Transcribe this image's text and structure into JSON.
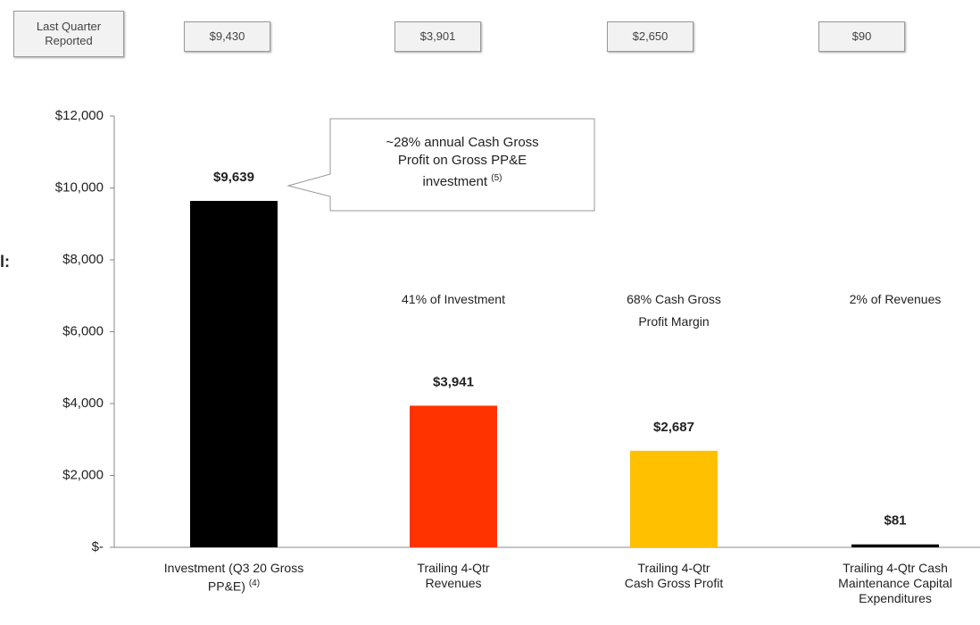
{
  "chart_data": {
    "type": "bar",
    "side_label": "l:",
    "header_label": "Last Quarter\nReported",
    "reported": [
      "$9,430",
      "$3,901",
      "$2,650",
      "$90"
    ],
    "categories": [
      "Investment (Q3 20 Gross\nPP&E)",
      "Trailing 4-Qtr\nRevenues",
      "Trailing 4-Qtr\nCash Gross Profit",
      "Trailing 4-Qtr Cash\nMaintenance Capital\nExpenditures"
    ],
    "category_notes": [
      "(4)",
      null,
      null,
      null
    ],
    "values": [
      9639,
      3941,
      2687,
      81
    ],
    "value_labels": [
      "$9,639",
      "$3,941",
      "$2,687",
      "$81"
    ],
    "colors": [
      "#000000",
      "#ff3300",
      "#ffc000",
      "#000000"
    ],
    "annotations": [
      null,
      "41% of Investment",
      "68% Cash Gross\nProfit Margin",
      "2% of Revenues"
    ],
    "callout": {
      "text": "~28% annual Cash Gross\nProfit on Gross PP&E\ninvestment",
      "note": "(5)"
    },
    "ylim": [
      0,
      12000
    ],
    "yticks": [
      {
        "value": 0,
        "label": "$-"
      },
      {
        "value": 2000,
        "label": "$2,000"
      },
      {
        "value": 4000,
        "label": "$4,000"
      },
      {
        "value": 6000,
        "label": "$6,000"
      },
      {
        "value": 8000,
        "label": "$8,000"
      },
      {
        "value": 10000,
        "label": "$10,000"
      },
      {
        "value": 12000,
        "label": "$12,000"
      }
    ]
  }
}
